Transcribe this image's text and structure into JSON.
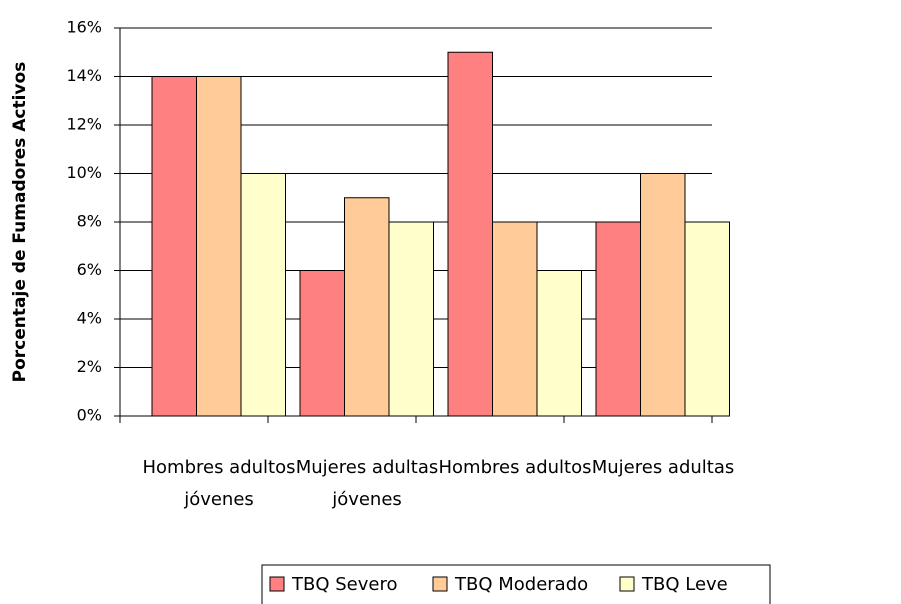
{
  "chart_data": {
    "type": "bar",
    "y_label": "Porcentaje de Fumadores Activos",
    "categories": [
      "Hombres adultos jóvenes",
      "Mujeres adultas jóvenes",
      "Hombres adultos",
      "Mujeres adultas"
    ],
    "series": [
      {
        "name": "TBQ Severo",
        "color": "#ff8080",
        "values": [
          14,
          6,
          15,
          8
        ]
      },
      {
        "name": "TBQ Moderado",
        "color": "#ffcc99",
        "values": [
          14,
          9,
          8,
          10
        ]
      },
      {
        "name": "TBQ Leve",
        "color": "#ffffcc",
        "values": [
          10,
          8,
          6,
          8
        ]
      }
    ],
    "ylim": [
      0,
      16
    ],
    "yticks": [
      {
        "value": 0,
        "label": "0%"
      },
      {
        "value": 2,
        "label": "2%"
      },
      {
        "value": 4,
        "label": "4%"
      },
      {
        "value": 6,
        "label": "6%"
      },
      {
        "value": 8,
        "label": "8%"
      },
      {
        "value": 10,
        "label": "10%"
      },
      {
        "value": 12,
        "label": "12%"
      },
      {
        "value": 14,
        "label": "14%"
      },
      {
        "value": 16,
        "label": "16%"
      }
    ],
    "grid": true,
    "legend": "bottom"
  }
}
